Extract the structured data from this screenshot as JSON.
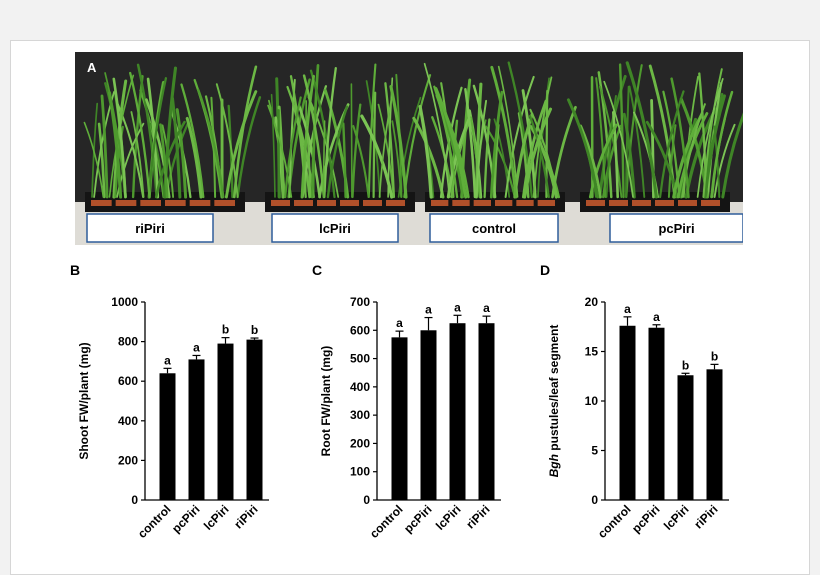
{
  "figure": {
    "panel_a_label": "A",
    "photo_labels": [
      "riPiri",
      "lcPiri",
      "control",
      "pcPiri"
    ],
    "colors": {
      "bar": "#000000",
      "background": "#ffffff",
      "photo_backdrop": "#262626",
      "label_border": "#2f5d9a",
      "plant": "#4e9a2e"
    }
  },
  "chart_data": [
    {
      "type": "bar",
      "panel_label": "B",
      "categories": [
        "control",
        "pcPiri",
        "lcPiri",
        "riPiri"
      ],
      "values": [
        640,
        710,
        790,
        810
      ],
      "errors": [
        25,
        20,
        30,
        8
      ],
      "significance": [
        "a",
        "a",
        "b",
        "b"
      ],
      "ylabel": "Shoot FW/plant (mg)",
      "ylim": [
        0,
        1000
      ],
      "yticks": [
        0,
        200,
        400,
        600,
        800,
        1000
      ]
    },
    {
      "type": "bar",
      "panel_label": "C",
      "categories": [
        "control",
        "pcPiri",
        "lcPiri",
        "riPiri"
      ],
      "values": [
        575,
        600,
        625,
        625
      ],
      "errors": [
        22,
        45,
        28,
        25
      ],
      "significance": [
        "a",
        "a",
        "a",
        "a"
      ],
      "ylabel": "Root FW/plant (mg)",
      "ylim": [
        0,
        700
      ],
      "yticks": [
        0,
        100,
        200,
        300,
        400,
        500,
        600,
        700
      ]
    },
    {
      "type": "bar",
      "panel_label": "D",
      "categories": [
        "control",
        "pcPiri",
        "lcPiri",
        "riPiri"
      ],
      "values": [
        17.6,
        17.4,
        12.6,
        13.2
      ],
      "errors": [
        0.9,
        0.3,
        0.2,
        0.5
      ],
      "significance": [
        "a",
        "a",
        "b",
        "b"
      ],
      "ylabel_italic": "Bgh",
      "ylabel": " pustules/leaf segment",
      "ylim": [
        0,
        20
      ],
      "yticks": [
        0,
        5,
        10,
        15,
        20
      ]
    }
  ]
}
